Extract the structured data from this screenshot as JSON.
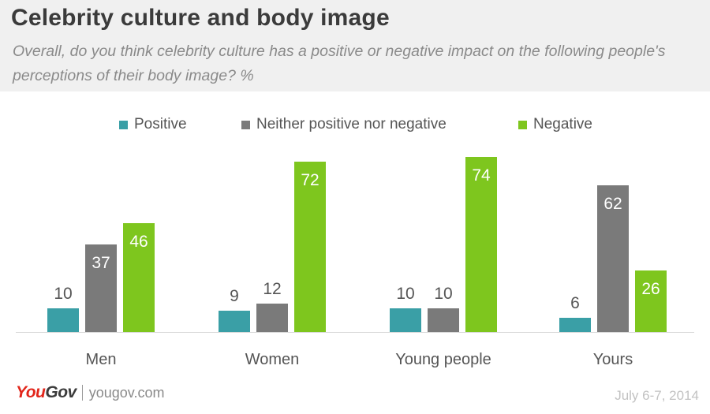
{
  "header": {
    "title": "Celebrity culture and body image",
    "subtitle": "Overall, do you think celebrity culture has a positive or negative impact on the following people's perceptions of their body image? %"
  },
  "legend": [
    {
      "label": "Positive",
      "color": "#3a9fa6"
    },
    {
      "label": "Neither positive nor negative",
      "color": "#7a7a7a"
    },
    {
      "label": "Negative",
      "color": "#7ec61e"
    }
  ],
  "chart_data": {
    "type": "bar",
    "categories": [
      "Men",
      "Women",
      "Young people",
      "Yours"
    ],
    "series": [
      {
        "name": "Positive",
        "values": [
          10,
          9,
          10,
          6
        ],
        "color": "#3a9fa6"
      },
      {
        "name": "Neither positive nor negative",
        "values": [
          37,
          12,
          10,
          62
        ],
        "color": "#7a7a7a"
      },
      {
        "name": "Negative",
        "values": [
          46,
          72,
          74,
          26
        ],
        "color": "#7ec61e"
      }
    ],
    "ylim": [
      0,
      80
    ],
    "legend_position": "top",
    "grid": false,
    "value_label_colors": {
      "inside": "#ffffff",
      "outside": "#555555"
    }
  },
  "footer": {
    "logo_you": "You",
    "logo_gov": "Gov",
    "url": "yougov.com",
    "date": "July 6-7, 2014"
  }
}
